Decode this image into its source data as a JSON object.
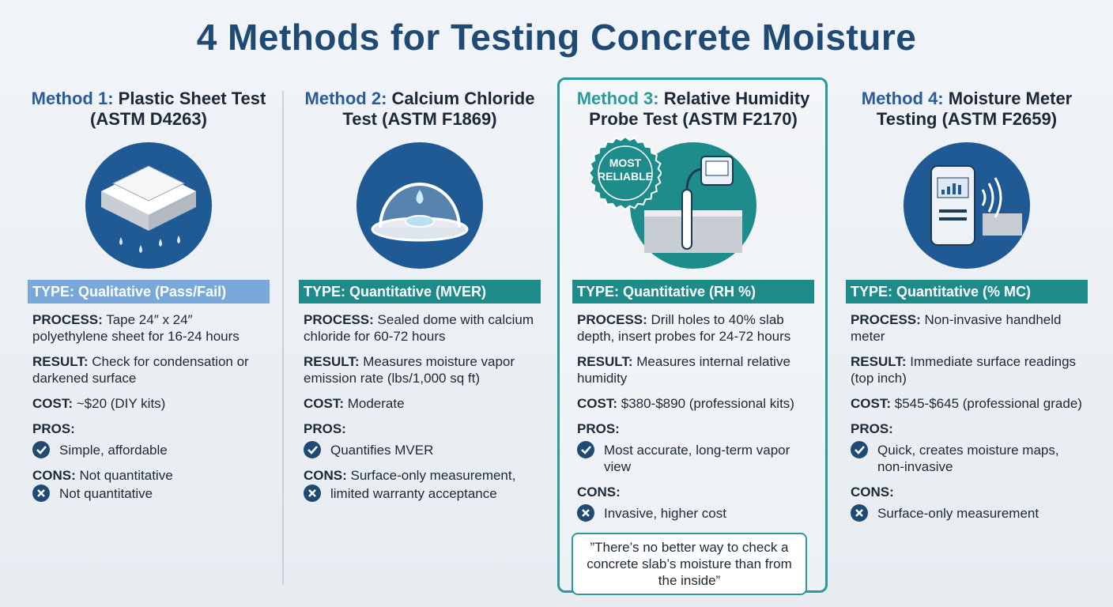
{
  "title": "4 Methods for Testing Concrete Moisture",
  "methods": [
    {
      "number": "Method 1:",
      "name": "Plastic Sheet Test (ASTM D4263)",
      "type": "TYPE: Qualitative (Pass/Fail)",
      "process": {
        "label": "PROCESS:",
        "text": "Tape 24″ x 24″ polyethylene sheet for 16-24 hours"
      },
      "result": {
        "label": "RESULT:",
        "text": "Check for condensation or darkened surface"
      },
      "cost": {
        "label": "COST:",
        "text": "~$20 (DIY kits)"
      },
      "pros": {
        "label": "PROS:",
        "items": [
          "Simple, affordable"
        ]
      },
      "cons": {
        "label": "CONS:",
        "text": "Not quantitative",
        "items": [
          "Not quantitative"
        ]
      }
    },
    {
      "number": "Method 2:",
      "name": "Calcium Chloride Test (ASTM F1869)",
      "type": "TYPE: Quantitative (MVER)",
      "process": {
        "label": "PROCESS:",
        "text": "Sealed dome with calcium chloride for 60-72 hours"
      },
      "result": {
        "label": "RESULT:",
        "text": "Measures moisture vapor emission rate (lbs/1,000 sq ft)"
      },
      "cost": {
        "label": "COST:",
        "text": "Moderate"
      },
      "pros": {
        "label": "PROS:",
        "items": [
          "Quantifies MVER"
        ]
      },
      "cons": {
        "label": "CONS:",
        "text": "Surface-only measurement,",
        "items": [
          "limited warranty acceptance"
        ]
      }
    },
    {
      "number": "Method 3:",
      "name": "Relative Humidity Probe Test (ASTM F2170)",
      "type": "TYPE: Quantitative (RH %)",
      "badge": "MOST RELIABLE",
      "process": {
        "label": "PROCESS:",
        "text": "Drill holes to 40% slab depth, insert probes for 24-72 hours"
      },
      "result": {
        "label": "RESULT:",
        "text": "Measures internal relative humidity"
      },
      "cost": {
        "label": "COST:",
        "text": "$380-$890 (professional kits)"
      },
      "pros": {
        "label": "PROS:",
        "items": [
          "Most accurate, long-term vapor view"
        ]
      },
      "cons": {
        "label": "CONS:",
        "items": [
          "Invasive, higher cost"
        ]
      },
      "quote": "”There’s no better way to check a concrete slab’s moisture than from the inside”"
    },
    {
      "number": "Method 4:",
      "name": "Moisture Meter Testing (ASTM F2659)",
      "type": "TYPE: Quantitative (% MC)",
      "process": {
        "label": "PROCESS:",
        "text": "Non-invasive handheld meter"
      },
      "result": {
        "label": "RESULT:",
        "text": "Immediate surface readings (top inch)"
      },
      "cost": {
        "label": "COST:",
        "text": "$545-$645 (professional grade)"
      },
      "pros": {
        "label": "PROS:",
        "items": [
          "Quick, creates moisture maps, non-invasive"
        ]
      },
      "cons": {
        "label": "CONS:",
        "items": [
          "Surface-only measurement"
        ]
      }
    }
  ]
}
